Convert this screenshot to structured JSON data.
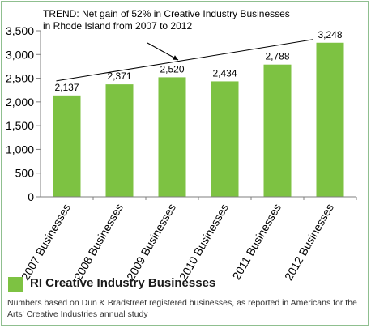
{
  "chart_data": {
    "type": "bar",
    "categories": [
      "2007 Businesses",
      "2008 Businesses",
      "2009 Businesses",
      "2010 Businesses",
      "2011 Businesses",
      "2012 Businesses"
    ],
    "series": [
      {
        "name": "RI Creative Industry Businesses",
        "values": [
          2137,
          2371,
          2520,
          2434,
          2788,
          3248
        ],
        "data_labels": [
          "2,137",
          "2,371",
          "2,520",
          "2,434",
          "2,788",
          "3,248"
        ]
      }
    ],
    "ylim": [
      0,
      3500
    ],
    "yticks": [
      0,
      500,
      1000,
      1500,
      2000,
      2500,
      3000,
      3500
    ],
    "ytick_labels": [
      "0",
      "500",
      "1,000",
      "1,500",
      "2,000",
      "2,500",
      "3,000",
      "3,500"
    ],
    "annotation": {
      "lines": [
        "TREND: Net gain of 52% in Creative Industry Businesses",
        "in Rhode Island from 2007 to 2012"
      ]
    },
    "grid": false,
    "legend": "bottom-left",
    "bar_color": "#7dc242"
  },
  "footnote": "Numbers based on Dun & Bradstreet registered businesses, as reported in Americans for the Arts' Creative Industries annual study"
}
